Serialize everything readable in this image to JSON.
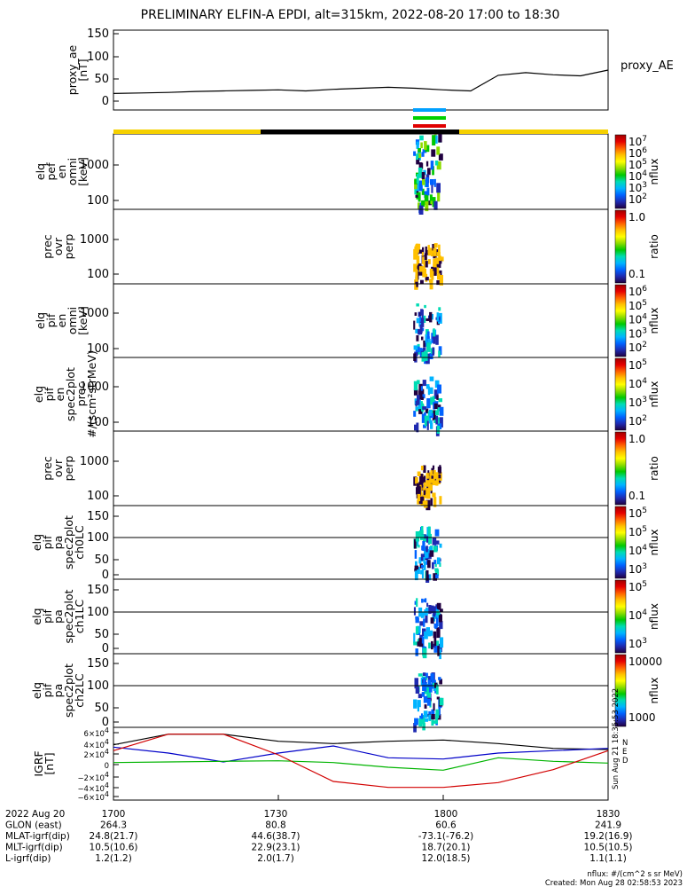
{
  "title": "PRELIMINARY ELFIN-A EPDI, alt=315km, 2022-08-20 17:00 to 18:30",
  "chart_data": [
    {
      "type": "line",
      "ylabel": [
        "proxy_ae",
        "[nT]"
      ],
      "legend": "proxy_AE",
      "yticks": [
        "150",
        "100",
        "50",
        "0"
      ],
      "ylim": [
        0,
        150
      ],
      "x_minutes": [
        0,
        5,
        10,
        15,
        20,
        25,
        30,
        35,
        40,
        45,
        50,
        55,
        60,
        65,
        70,
        75,
        80,
        85,
        90
      ],
      "values": [
        30,
        31,
        32,
        34,
        35,
        36,
        37,
        35,
        38,
        40,
        42,
        40,
        37,
        35,
        65,
        70,
        66,
        64,
        75
      ]
    },
    {
      "type": "heatmap",
      "ylabel": [
        "elq",
        "pef",
        "en",
        "omni",
        "[keV]"
      ],
      "yticks": [
        "1000",
        "100"
      ],
      "colorbar": {
        "title": "nflux",
        "ticks": [
          "10<tspan dy='-5' font-size='9'>7</tspan>",
          "10<tspan dy='-5' font-size='9'>6</tspan>",
          "10<tspan dy='-5' font-size='9'>5</tspan>",
          "10<tspan dy='-5' font-size='9'>4</tspan>",
          "10<tspan dy='-5' font-size='9'>3</tspan>",
          "10<tspan dy='-5' font-size='9'>2</tspan>"
        ]
      }
    },
    {
      "type": "heatmap",
      "ylabel": [
        "prec",
        "ovr",
        "perp"
      ],
      "yticks": [
        "1000",
        "100"
      ],
      "colorbar": {
        "title": "ratio",
        "ticks": [
          "1.0",
          "0.1"
        ]
      }
    },
    {
      "type": "heatmap",
      "ylabel": [
        "elq",
        "pif",
        "en",
        "omni",
        "[keV]"
      ],
      "yticks": [
        "1000",
        "100"
      ],
      "colorbar": {
        "title": "nflux",
        "ticks": [
          "10<tspan dy='-5' font-size='9'>6</tspan>",
          "10<tspan dy='-5' font-size='9'>5</tspan>",
          "10<tspan dy='-5' font-size='9'>4</tspan>",
          "10<tspan dy='-5' font-size='9'>3</tspan>",
          "10<tspan dy='-5' font-size='9'>2</tspan>"
        ]
      }
    },
    {
      "type": "heatmap",
      "ylabel": [
        "elq",
        "pif",
        "en",
        "spec2plot",
        "prec",
        "#/(scm²strMeV)"
      ],
      "yticks": [
        "1000",
        "100"
      ],
      "colorbar": {
        "title": "nflux",
        "ticks": [
          "10<tspan dy='-5' font-size='9'>5</tspan>",
          "10<tspan dy='-5' font-size='9'>4</tspan>",
          "10<tspan dy='-5' font-size='9'>3</tspan>",
          "10<tspan dy='-5' font-size='9'>2</tspan>"
        ]
      }
    },
    {
      "type": "heatmap",
      "ylabel": [
        "prec",
        "ovr",
        "perp"
      ],
      "yticks": [
        "1000",
        "100"
      ],
      "colorbar": {
        "title": "ratio",
        "ticks": [
          "1.0",
          "0.1"
        ]
      }
    },
    {
      "type": "heatmap",
      "ylabel": [
        "elq",
        "pif",
        "pa",
        "spec2plot",
        "ch0LC"
      ],
      "yticks": [
        "150",
        "100",
        "50",
        "0"
      ],
      "colorbar": {
        "title": "nflux",
        "ticks": [
          "10<tspan dy='-5' font-size='9'>5</tspan>",
          "10<tspan dy='-5' font-size='9'>5</tspan>",
          "10<tspan dy='-5' font-size='9'>4</tspan>",
          "10<tspan dy='-5' font-size='9'>3</tspan>"
        ]
      }
    },
    {
      "type": "heatmap",
      "ylabel": [
        "elq",
        "pif",
        "pa",
        "spec2plot",
        "ch1LC"
      ],
      "yticks": [
        "150",
        "100",
        "50",
        "0"
      ],
      "colorbar": {
        "title": "nflux",
        "ticks": [
          "10<tspan dy='-5' font-size='9'>5</tspan>",
          "10<tspan dy='-5' font-size='9'>4</tspan>",
          "10<tspan dy='-5' font-size='9'>3</tspan>"
        ]
      }
    },
    {
      "type": "heatmap",
      "ylabel": [
        "elq",
        "pif",
        "pa",
        "spec2plot",
        "ch2LC"
      ],
      "yticks": [
        "150",
        "100",
        "50",
        "0"
      ],
      "colorbar": {
        "title": "nflux",
        "ticks": [
          "10000",
          "1000"
        ]
      }
    },
    {
      "type": "line",
      "ylabel": [
        "IGRF",
        "[nT]"
      ],
      "yticks": [
        "6×10<tspan dy='-4' font-size='8'>4</tspan>",
        "4×10<tspan dy='-4' font-size='8'>4</tspan>",
        "2×10<tspan dy='-4' font-size='8'>4</tspan>",
        "0",
        "−2×10<tspan dy='-4' font-size='8'>4</tspan>",
        "−4×10<tspan dy='-4' font-size='8'>4</tspan>",
        "−6×10<tspan dy='-4' font-size='8'>4</tspan>"
      ],
      "ylim": [
        -60000,
        60000
      ],
      "legend": [
        "N",
        "E",
        "D"
      ],
      "x_minutes": [
        0,
        10,
        20,
        30,
        40,
        50,
        60,
        70,
        80,
        90
      ],
      "series": [
        {
          "color": "#000000",
          "values": [
            32000,
            50000,
            50000,
            38000,
            34000,
            38000,
            40000,
            34000,
            26000,
            24000
          ]
        },
        {
          "color": "#0000c8",
          "values": [
            28000,
            18000,
            3000,
            18000,
            30000,
            10000,
            8000,
            18000,
            22000,
            26000
          ]
        },
        {
          "color": "#00b400",
          "values": [
            2000,
            3000,
            4000,
            5000,
            2000,
            -6000,
            -11000,
            10000,
            4000,
            1000
          ]
        },
        {
          "color": "#d20000",
          "values": [
            22000,
            50000,
            50000,
            15000,
            -30000,
            -40000,
            -40000,
            -32000,
            -10000,
            22000
          ]
        }
      ]
    }
  ],
  "orbit_bar": {
    "colors": [
      "#f5d000",
      "#000000"
    ]
  },
  "side_stamp": "Sun Aug 21 18:35:53 2022",
  "footer": {
    "rows": [
      {
        "label": "2022 Aug 20",
        "vals": [
          "1700",
          "1730",
          "1800",
          "1830"
        ]
      },
      {
        "label": "GLON (east)",
        "vals": [
          "264.3",
          "80.8",
          "60.6",
          "241.9"
        ]
      },
      {
        "label": "MLAT-igrf(dip)",
        "vals": [
          "24.8(21.7)",
          "44.6(38.7)",
          "-73.1(-76.2)",
          "19.2(16.9)"
        ]
      },
      {
        "label": "MLT-igrf(dip)",
        "vals": [
          "10.5(10.6)",
          "22.9(23.1)",
          "18.7(20.1)",
          "10.5(10.5)"
        ]
      },
      {
        "label": "L-igrf(dip)",
        "vals": [
          "1.2(1.2)",
          "2.0(1.7)",
          "12.0(18.5)",
          "1.1(1.1)"
        ]
      }
    ],
    "nflux_note": "nflux: #/(cm^2 s sr MeV)",
    "created": "Created: Mon Aug 28 02:58:53 2023"
  }
}
